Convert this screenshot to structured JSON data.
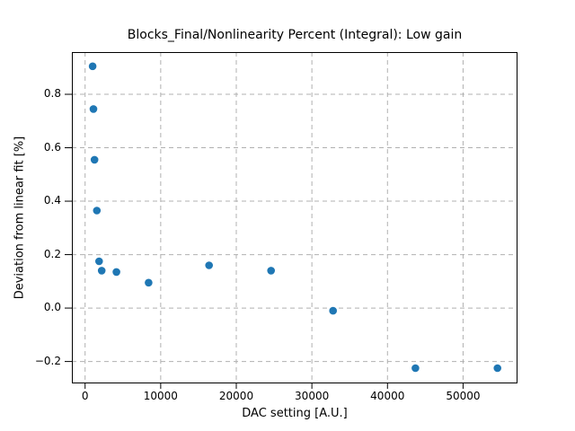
{
  "chart_data": {
    "type": "scatter",
    "title": "Blocks_Final/Nonlinearity Percent (Integral): Low gain",
    "xlabel": "DAC setting [A.U.]",
    "ylabel": "Deviation from linear fit [%]",
    "x": [
      1000,
      1100,
      1250,
      1550,
      1850,
      2200,
      4150,
      8400,
      16400,
      24600,
      32800,
      43700,
      54550
    ],
    "y": [
      0.905,
      0.745,
      0.555,
      0.365,
      0.175,
      0.14,
      0.135,
      0.095,
      0.16,
      0.14,
      -0.01,
      -0.225,
      -0.225
    ],
    "xlim": [
      -1750,
      57200
    ],
    "ylim": [
      -0.282,
      0.958
    ],
    "xticks": [
      0,
      10000,
      20000,
      30000,
      40000,
      50000
    ],
    "yticks": [
      -0.2,
      0.0,
      0.2,
      0.4,
      0.6,
      0.8
    ],
    "grid": true,
    "grid_style": "dashed",
    "legend": "none",
    "marker_color": "#1f77b4",
    "grid_color": "#b0b0b0",
    "axis_color": "#000000",
    "marker_radius_px": 4.3
  }
}
